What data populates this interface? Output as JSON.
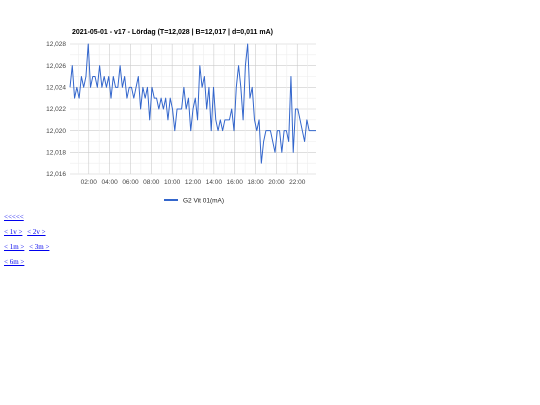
{
  "chart_data": {
    "type": "line",
    "title": "2021-05-01 - v17 - Lördag (T=12,028 | B=12,017 | d=0,011 mA)",
    "xlabel": "",
    "ylabel": "",
    "x_range_hours": [
      0.2,
      23.8
    ],
    "ylim": [
      12.016,
      12.028
    ],
    "y_ticks": [
      "12,016",
      "12,018",
      "12,020",
      "12,022",
      "12,024",
      "12,026",
      "12,028"
    ],
    "x_ticks": [
      "02:00",
      "04:00",
      "06:00",
      "08:00",
      "10:00",
      "12:00",
      "14:00",
      "16:00",
      "18:00",
      "20:00",
      "22:00"
    ],
    "grid": true,
    "legend_position": "bottom",
    "series": [
      {
        "name": "G2 Vit 01(mA)",
        "color": "#3366cc",
        "values": [
          12.024,
          12.026,
          12.023,
          12.024,
          12.023,
          12.025,
          12.024,
          12.025,
          12.028,
          12.024,
          12.025,
          12.025,
          12.024,
          12.026,
          12.024,
          12.025,
          12.024,
          12.025,
          12.023,
          12.025,
          12.024,
          12.024,
          12.026,
          12.024,
          12.025,
          12.023,
          12.024,
          12.024,
          12.023,
          12.024,
          12.025,
          12.022,
          12.024,
          12.023,
          12.024,
          12.021,
          12.024,
          12.023,
          12.023,
          12.022,
          12.023,
          12.022,
          12.023,
          12.021,
          12.023,
          12.022,
          12.02,
          12.022,
          12.022,
          12.022,
          12.024,
          12.022,
          12.023,
          12.02,
          12.022,
          12.023,
          12.021,
          12.026,
          12.024,
          12.025,
          12.022,
          12.024,
          12.02,
          12.024,
          12.021,
          12.02,
          12.021,
          12.02,
          12.021,
          12.021,
          12.021,
          12.022,
          12.02,
          12.024,
          12.026,
          12.024,
          12.021,
          12.026,
          12.028,
          12.023,
          12.024,
          12.021,
          12.02,
          12.021,
          12.017,
          12.019,
          12.02,
          12.02,
          12.02,
          12.019,
          12.018,
          12.02,
          12.02,
          12.018,
          12.02,
          12.02,
          12.019,
          12.025,
          12.018,
          12.022,
          12.022,
          12.021,
          12.02,
          12.019,
          12.021,
          12.02,
          12.02,
          12.02,
          12.02
        ]
      }
    ]
  },
  "nav": {
    "row1": [
      "<<<<<"
    ],
    "row2": [
      "< 1v >",
      "< 2v >"
    ],
    "row3": [
      "< 1m >",
      "< 3m >"
    ],
    "row4": [
      "< 6m >"
    ]
  }
}
